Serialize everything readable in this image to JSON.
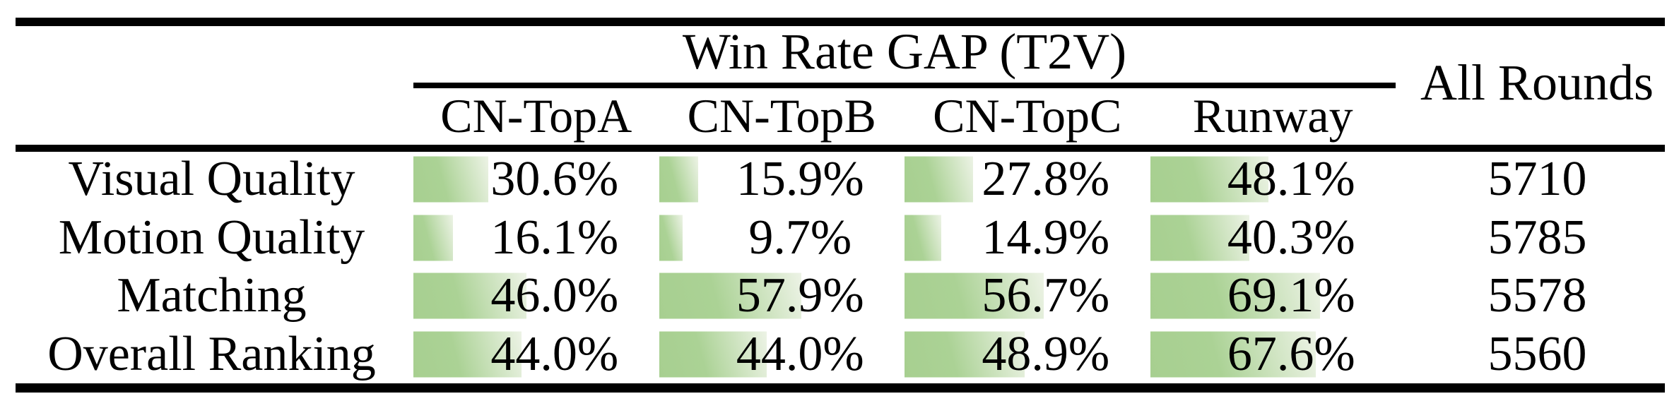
{
  "table": {
    "group_header": "Win Rate GAP (T2V)",
    "all_rounds_header": "All Rounds",
    "columns": [
      "CN-TopA",
      "CN-TopB",
      "CN-TopC",
      "Runway"
    ],
    "rows": [
      {
        "label": "Visual Quality",
        "cells": [
          "30.6%",
          "15.9%",
          "27.8%",
          "48.1%"
        ],
        "all_rounds": "5710"
      },
      {
        "label": "Motion Quality",
        "cells": [
          "16.1%",
          "9.7%",
          "14.9%",
          "40.3%"
        ],
        "all_rounds": "5785"
      },
      {
        "label": "Matching",
        "cells": [
          "46.0%",
          "57.9%",
          "56.7%",
          "69.1%"
        ],
        "all_rounds": "5578"
      },
      {
        "label": "Overall Ranking",
        "cells": [
          "44.0%",
          "44.0%",
          "48.9%",
          "67.6%"
        ],
        "all_rounds": "5560"
      }
    ]
  },
  "chart_data": {
    "type": "table",
    "title": "Win Rate GAP (T2V)",
    "categories": [
      "CN-TopA",
      "CN-TopB",
      "CN-TopC",
      "Runway"
    ],
    "series": [
      {
        "name": "Visual Quality",
        "values": [
          30.6,
          15.9,
          27.8,
          48.1
        ],
        "all_rounds": 5710
      },
      {
        "name": "Motion Quality",
        "values": [
          16.1,
          9.7,
          14.9,
          40.3
        ],
        "all_rounds": 5785
      },
      {
        "name": "Matching",
        "values": [
          46.0,
          57.9,
          56.7,
          69.1
        ],
        "all_rounds": 5578
      },
      {
        "name": "Overall Ranking",
        "values": [
          44.0,
          44.0,
          48.9,
          67.6
        ],
        "all_rounds": 5560
      }
    ],
    "bar_range": [
      0,
      100
    ],
    "bar_style": "left-aligned horizontal data bar behind each percentage, width proportional to value",
    "legend_position": "none"
  },
  "colors": {
    "bar_gradient_start": "#a7cf90",
    "bar_gradient_mid": "#abd295",
    "bar_gradient_end": "#edf3e6",
    "rule": "#000000",
    "background": "#ffffff",
    "text": "#000000"
  }
}
